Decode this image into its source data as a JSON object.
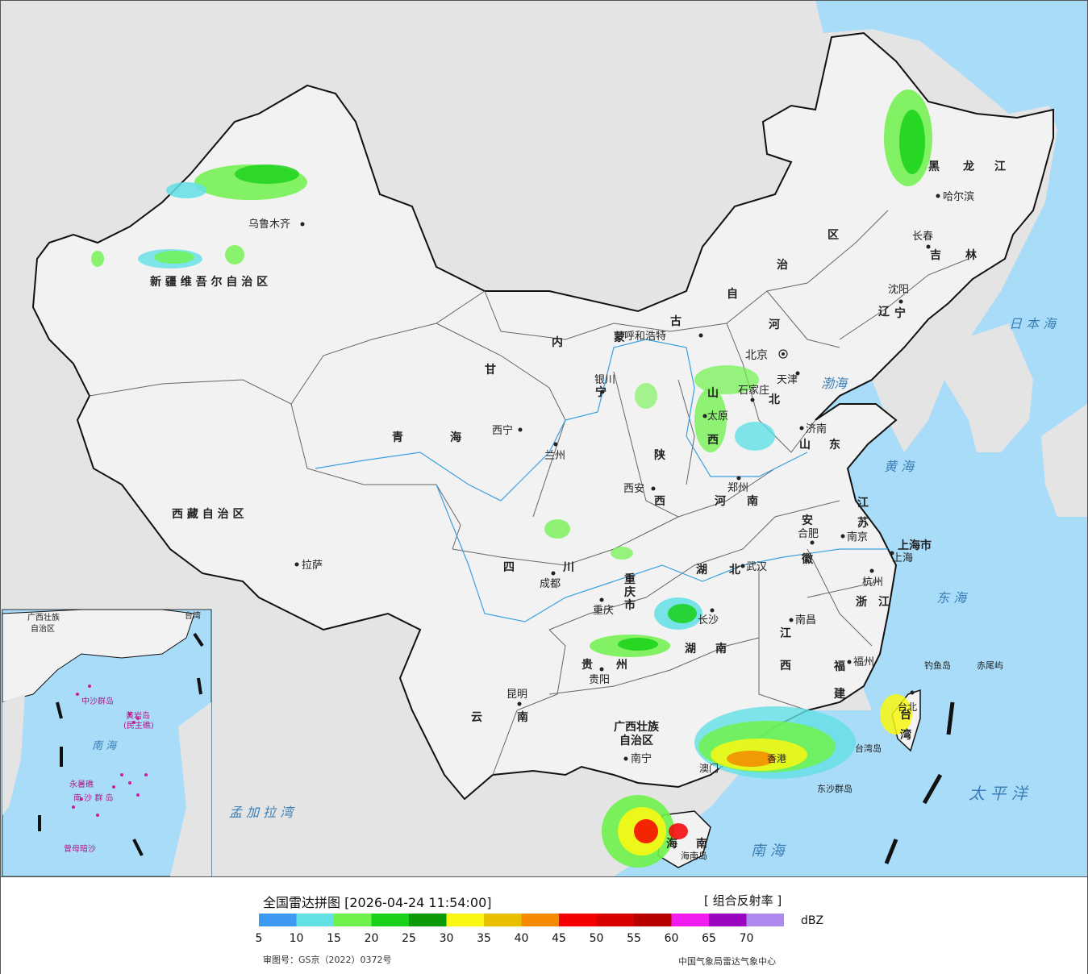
{
  "legend": {
    "title": "全国雷达拼图 [2026-04-24 11:54:00]",
    "product": "[ 组合反射率 ]",
    "unit": "dBZ",
    "approval": "审图号：GS京（2022）0372号",
    "source": "中国气象局雷达气象中心",
    "colors": [
      "#3d9af3",
      "#61e0e6",
      "#6ef24b",
      "#19d119",
      "#0a9a0a",
      "#f8f812",
      "#e8c000",
      "#f58a00",
      "#f50000",
      "#d80000",
      "#b80000",
      "#f21cf0",
      "#9b05c1",
      "#ad89ed"
    ],
    "ticks": [
      "5",
      "10",
      "15",
      "20",
      "25",
      "30",
      "35",
      "40",
      "45",
      "50",
      "55",
      "60",
      "65",
      "70"
    ]
  },
  "regions": [
    {
      "name": "新 疆 维 吾 尔 自 治 区"
    },
    {
      "name": "西 藏 自 治 区"
    },
    {
      "name": "青"
    },
    {
      "name": "海"
    },
    {
      "name": "甘"
    },
    {
      "name": "内"
    },
    {
      "name": "蒙"
    },
    {
      "name": "古"
    },
    {
      "name": "自"
    },
    {
      "name": "治"
    },
    {
      "name": "区"
    },
    {
      "name": "黑"
    },
    {
      "name": "龙"
    },
    {
      "name": "江"
    },
    {
      "name": "吉"
    },
    {
      "name": "林"
    },
    {
      "name": "辽"
    },
    {
      "name": "宁"
    },
    {
      "name": "河"
    },
    {
      "name": "北"
    },
    {
      "name": "山"
    },
    {
      "name": "西"
    },
    {
      "name": "山"
    },
    {
      "name": "东"
    },
    {
      "name": "陕"
    },
    {
      "name": "西"
    },
    {
      "name": "河"
    },
    {
      "name": "南"
    },
    {
      "name": "四"
    },
    {
      "name": "川"
    },
    {
      "name": "重"
    },
    {
      "name": "庆"
    },
    {
      "name": "市"
    },
    {
      "name": "湖"
    },
    {
      "name": "北"
    },
    {
      "name": "湖"
    },
    {
      "name": "南"
    },
    {
      "name": "贵"
    },
    {
      "name": "州"
    },
    {
      "name": "云"
    },
    {
      "name": "南"
    },
    {
      "name": "广西壮族"
    },
    {
      "name": "自治区"
    },
    {
      "name": "江"
    },
    {
      "name": "西"
    },
    {
      "name": "安"
    },
    {
      "name": "徽"
    },
    {
      "name": "江"
    },
    {
      "name": "苏"
    },
    {
      "name": "浙"
    },
    {
      "name": "江"
    },
    {
      "name": "福"
    },
    {
      "name": "建"
    },
    {
      "name": "上海市"
    },
    {
      "name": "台"
    },
    {
      "name": "湾"
    },
    {
      "name": "海"
    },
    {
      "name": "南"
    },
    {
      "name": "宁"
    }
  ],
  "cities": [
    "乌鲁木齐",
    "拉萨",
    "西宁",
    "兰州",
    "银川",
    "呼和浩特",
    "北京",
    "天津",
    "石家庄",
    "太原",
    "济南",
    "郑州",
    "西安",
    "成都",
    "重庆",
    "武汉",
    "合肥",
    "南京",
    "上海",
    "杭州",
    "长沙",
    "南昌",
    "福州",
    "贵阳",
    "昆明",
    "南宁",
    "哈尔滨",
    "长春",
    "沈阳",
    "台北",
    "香港",
    "澳门",
    "海南岛",
    "台湾岛",
    "钓鱼岛",
    "赤尾屿",
    "东沙群岛"
  ],
  "seas": [
    "日 本 海",
    "渤海",
    "黄 海",
    "东 海",
    "太 平 洋",
    "南 海",
    "孟 加 拉 湾"
  ],
  "inset": {
    "labels": [
      "广西壮族",
      "自治区",
      "南 海",
      "中沙群岛",
      "黄岩岛",
      "(民主礁)",
      "永暑礁",
      "南 沙 群 岛",
      "曾母暗沙",
      "台湾"
    ]
  }
}
